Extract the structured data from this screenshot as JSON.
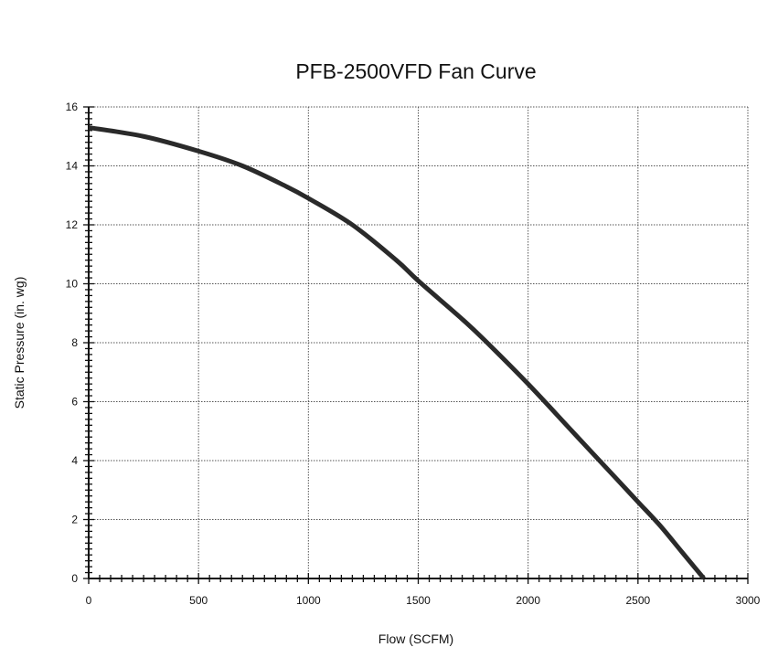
{
  "chart_data": {
    "type": "line",
    "title": "PFB-2500VFD Fan Curve",
    "xlabel": "Flow (SCFM)",
    "ylabel": "Static Pressure (in. wg)",
    "xlim": [
      0,
      3000
    ],
    "ylim": [
      0,
      16
    ],
    "xticks": [
      0,
      500,
      1000,
      1500,
      2000,
      2500,
      3000
    ],
    "yticks": [
      0,
      2,
      4,
      6,
      8,
      10,
      12,
      14,
      16
    ],
    "x_minor_step": 50,
    "y_minor_step": 0.2,
    "grid": true,
    "line_color": "#2a2a2a",
    "series": [
      {
        "x": [
          0,
          250,
          500,
          700,
          900,
          1000,
          1200,
          1400,
          1500,
          1700,
          1800,
          2000,
          2200,
          2400,
          2500,
          2600,
          2700,
          2800
        ],
        "values": [
          15.3,
          15.0,
          14.5,
          14.0,
          13.3,
          12.9,
          12.0,
          10.8,
          10.1,
          8.8,
          8.1,
          6.6,
          5.0,
          3.4,
          2.6,
          1.8,
          0.9,
          0.0
        ]
      }
    ]
  }
}
